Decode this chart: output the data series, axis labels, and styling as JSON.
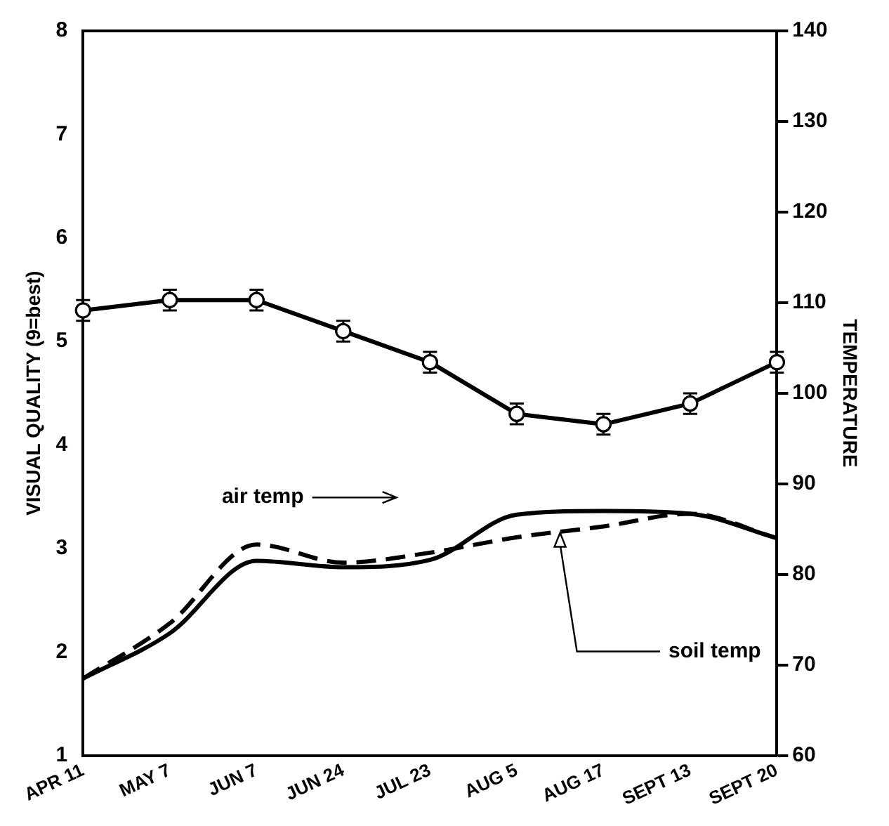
{
  "chart_data": {
    "type": "line",
    "ylabel": "VISUAL QUALITY (9=best)",
    "y2label": "TEMPERATURE",
    "categories": [
      "APR 11",
      "MAY 7",
      "JUN 7",
      "JUN 24",
      "JUL 23",
      "AUG 5",
      "AUG 17",
      "SEPT 13",
      "SEPT 20"
    ],
    "series": [
      {
        "color": "#000000",
        "values": [
          5.3,
          5.4,
          5.4,
          5.1,
          4.8,
          4.3,
          4.2,
          4.4,
          4.8
        ],
        "errors": [
          0.1,
          0.1,
          0.1,
          0.1,
          0.1,
          0.1,
          0.1,
          0.1,
          0.1
        ],
        "marker": "circle",
        "line_style": "solid"
      },
      {
        "type": "line",
        "axis": "y2",
        "color": "#000000",
        "values": [
          68.5,
          74.6,
          83.3,
          81.3,
          82.4,
          84.1,
          85.3,
          86.7,
          84
        ],
        "line_style": "dashed",
        "marker": "none"
      },
      {
        "type": "line",
        "axis": "y2",
        "color": "#000000",
        "values": [
          68.5,
          73.5,
          81.5,
          80.8,
          81.6,
          86.6,
          87,
          86.7,
          84
        ],
        "line_style": "solid",
        "marker": "none"
      }
    ],
    "ylim": [
      1,
      8
    ],
    "yticks": [
      1,
      2,
      3,
      4,
      5,
      6,
      7,
      8
    ],
    "y2lim": [
      60,
      140
    ],
    "y2ticks": [
      60,
      70,
      80,
      90,
      100,
      110,
      120,
      130,
      140
    ],
    "annotations": [
      "air temp",
      "soil temp"
    ],
    "grid": false,
    "legend": false
  }
}
